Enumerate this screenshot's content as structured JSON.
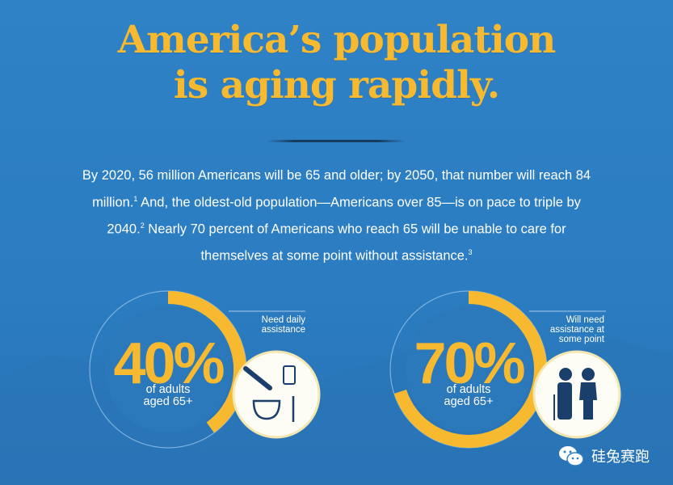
{
  "title": {
    "line1": "America’s population",
    "line2": "is aging rapidly."
  },
  "intro": {
    "p1": "By 2020, 56 million Americans will be 65 and older; by 2050, that number will reach 84 million.",
    "fn1": "1",
    "p2": " And, the oldest-old population—Americans over 85—is on pace to triple by 2040.",
    "fn2": "2",
    "p3": " Nearly 70 percent of Americans who reach 65 will be unable to care for themselves at some point without assistance.",
    "fn3": "3"
  },
  "stats": [
    {
      "percent": 40,
      "value_label": "40%",
      "sub_line1": "of adults",
      "sub_line2": "aged 65+",
      "label_line1": "Need daily",
      "label_line2": "assistance",
      "label_line3": "",
      "icon": "daily-care-icons"
    },
    {
      "percent": 70,
      "value_label": "70%",
      "sub_line1": "of adults",
      "sub_line2": "aged 65+",
      "label_line1": "Will need",
      "label_line2": "assistance at",
      "label_line3": "some point",
      "icon": "elderly-couple-icon"
    }
  ],
  "watermark": {
    "text": "硅兔赛跑"
  },
  "colors": {
    "accent": "#f6b930",
    "background": "#2e80c4",
    "icon_dark": "#1b3f6b"
  }
}
